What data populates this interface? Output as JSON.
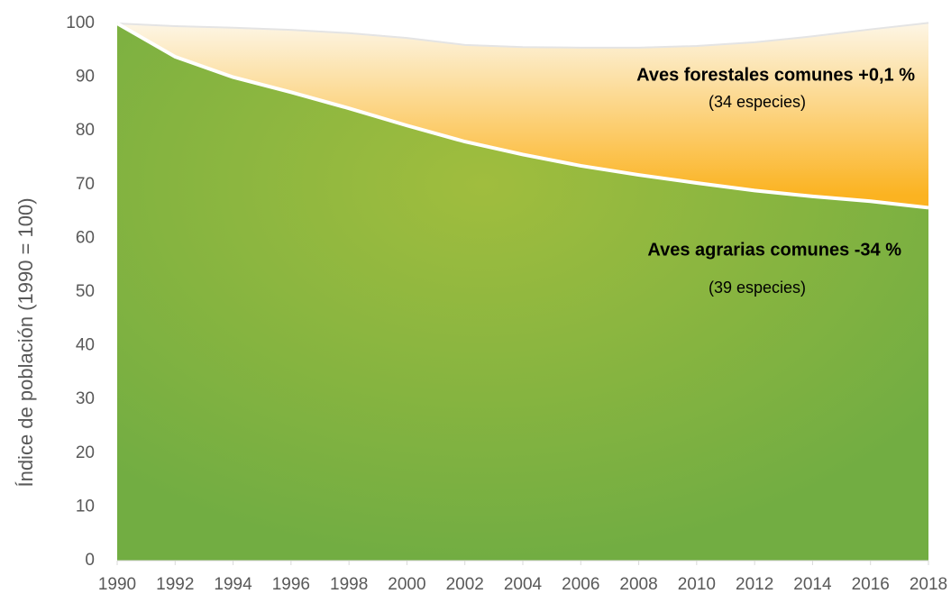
{
  "chart_data": {
    "type": "area",
    "y_label": "Índice de población (1990 = 100)",
    "x": [
      1990,
      1992,
      1994,
      1996,
      1998,
      2000,
      2002,
      2004,
      2006,
      2008,
      2010,
      2012,
      2014,
      2016,
      2018
    ],
    "series": [
      {
        "name": "Aves forestales comunes",
        "color": "#fbb321",
        "values": [
          100,
          99.5,
          99.2,
          98.8,
          98.2,
          97.3,
          96,
          95.6,
          95.5,
          95.5,
          95.8,
          96.5,
          97.6,
          98.9,
          100.1
        ]
      },
      {
        "name": "Aves agrarias comunes",
        "color": "#72ad42",
        "values": [
          100,
          93.8,
          90,
          87.2,
          84.2,
          81,
          78,
          75.6,
          73.5,
          71.8,
          70.3,
          68.9,
          67.8,
          66.9,
          65.7
        ]
      }
    ],
    "annotations": [
      "Aves forestales comunes +0,1 %",
      "(34 especies)",
      "Aves agrarias comunes -34 %",
      "(39 especies)"
    ],
    "xlim": [
      1990,
      2018
    ],
    "xticks": [
      1990,
      1992,
      1994,
      1996,
      1998,
      2000,
      2002,
      2004,
      2006,
      2008,
      2010,
      2012,
      2014,
      2016,
      2018
    ],
    "ylim": [
      0,
      100
    ],
    "yticks": [
      0,
      10,
      20,
      30,
      40,
      50,
      60,
      70,
      80,
      90,
      100
    ]
  }
}
